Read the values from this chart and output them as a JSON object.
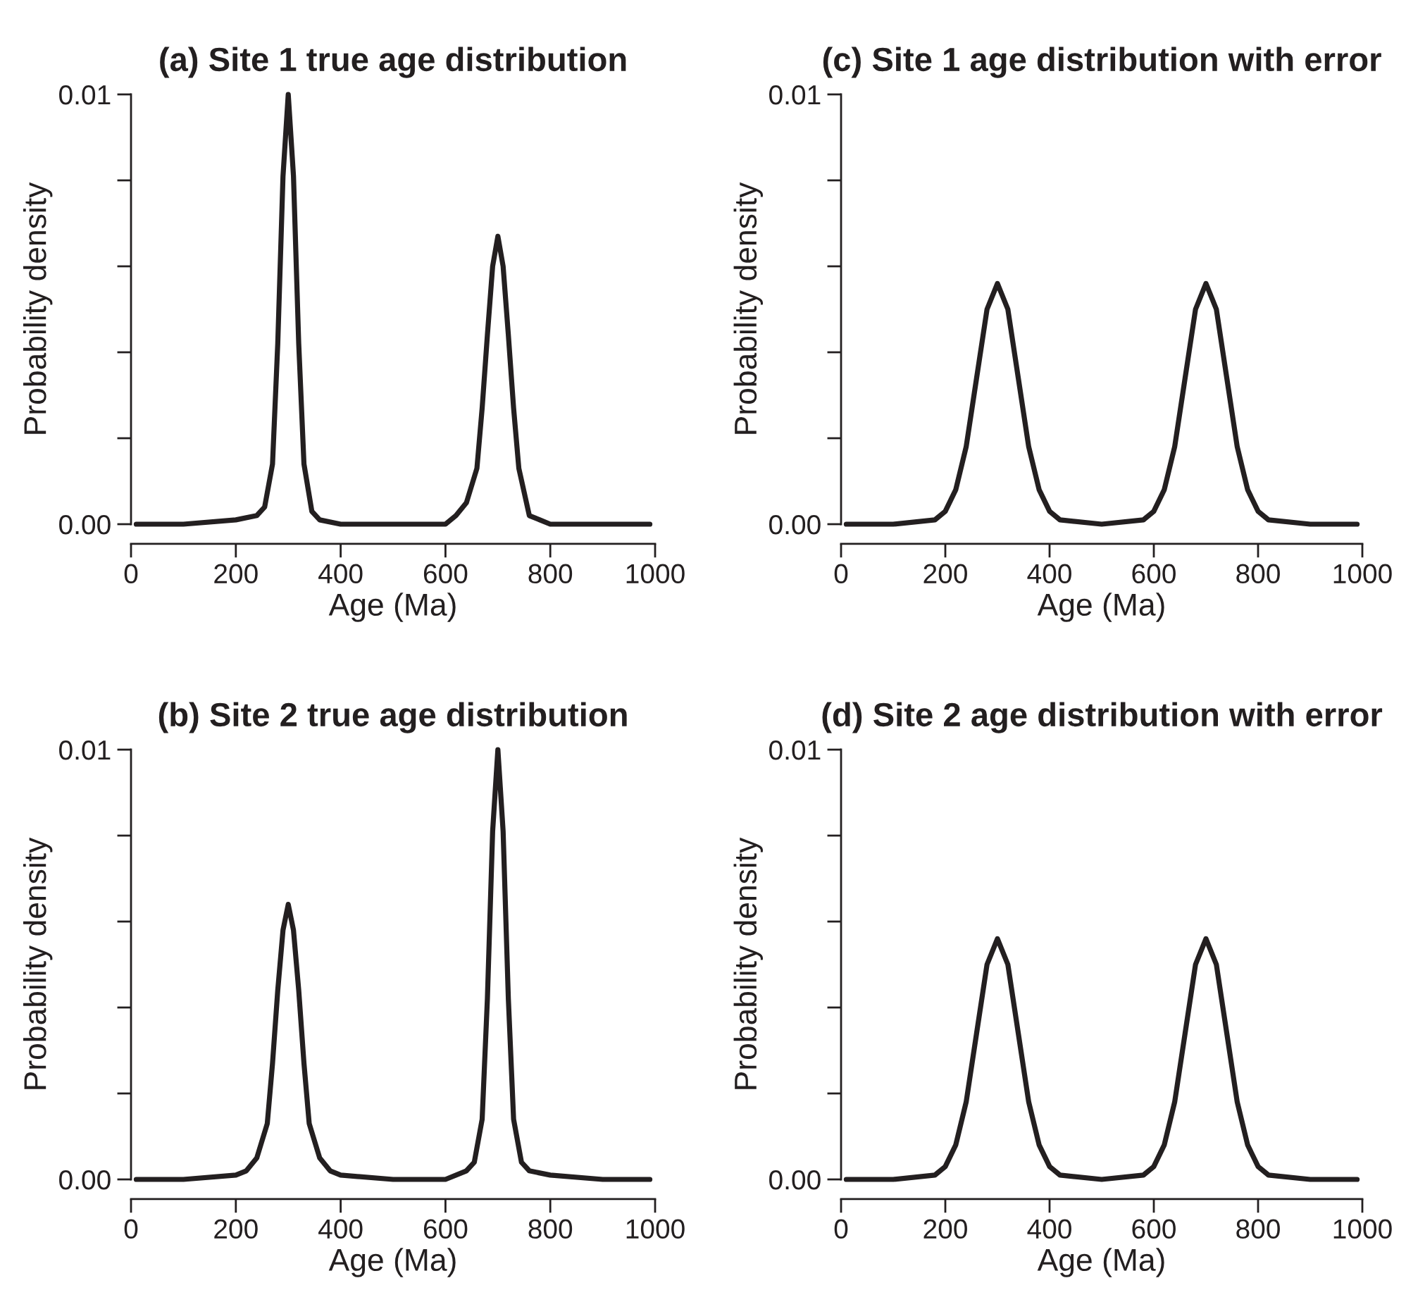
{
  "chart_data": [
    {
      "type": "line",
      "title": "(a) Site 1 true age distribution",
      "xlabel": "Age (Ma)",
      "ylabel": "Probability density",
      "xlim": [
        0,
        1000
      ],
      "ylim": [
        0,
        0.01
      ],
      "xticks": [
        0,
        200,
        400,
        600,
        800,
        1000
      ],
      "yticks": [
        {
          "value": 0,
          "label": "0.00"
        },
        {
          "value": 0.002,
          "label": null
        },
        {
          "value": 0.004,
          "label": null
        },
        {
          "value": 0.006,
          "label": null
        },
        {
          "value": 0.008,
          "label": null
        },
        {
          "value": 0.01,
          "label": "0.01"
        }
      ],
      "grid": false,
      "legend": false,
      "series": [
        {
          "color": "#231f20",
          "x": [
            10,
            100,
            200,
            240,
            255,
            270,
            280,
            290,
            300,
            310,
            320,
            330,
            345,
            360,
            400,
            500,
            600,
            620,
            640,
            660,
            670,
            680,
            690,
            700,
            710,
            720,
            730,
            740,
            760,
            780,
            800,
            900,
            990
          ],
          "values": [
            0,
            0,
            0.0001,
            0.0002,
            0.0004,
            0.0014,
            0.0042,
            0.0081,
            0.01,
            0.0081,
            0.0042,
            0.0014,
            0.0003,
            0.0001,
            0,
            0,
            0,
            0.0002,
            0.0005,
            0.0013,
            0.0027,
            0.0044,
            0.006,
            0.0067,
            0.006,
            0.0044,
            0.0027,
            0.0013,
            0.0002,
            0.0001,
            0,
            0,
            0
          ]
        }
      ]
    },
    {
      "type": "line",
      "title": "(c) Site 1 age distribution with error",
      "xlabel": "Age (Ma)",
      "ylabel": "Probability density",
      "xlim": [
        0,
        1000
      ],
      "ylim": [
        0,
        0.01
      ],
      "xticks": [
        0,
        200,
        400,
        600,
        800,
        1000
      ],
      "yticks": [
        {
          "value": 0,
          "label": "0.00"
        },
        {
          "value": 0.002,
          "label": null
        },
        {
          "value": 0.004,
          "label": null
        },
        {
          "value": 0.006,
          "label": null
        },
        {
          "value": 0.008,
          "label": null
        },
        {
          "value": 0.01,
          "label": "0.01"
        }
      ],
      "grid": false,
      "legend": false,
      "series": [
        {
          "color": "#231f20",
          "x": [
            10,
            100,
            180,
            200,
            220,
            240,
            260,
            280,
            300,
            320,
            340,
            360,
            380,
            400,
            420,
            500,
            580,
            600,
            620,
            640,
            660,
            680,
            700,
            720,
            740,
            760,
            780,
            800,
            820,
            900,
            990
          ],
          "values": [
            0,
            0,
            0.0001,
            0.0003,
            0.0008,
            0.0018,
            0.0034,
            0.005,
            0.0056,
            0.005,
            0.0034,
            0.0018,
            0.0008,
            0.0003,
            0.0001,
            0,
            0.0001,
            0.0003,
            0.0008,
            0.0018,
            0.0034,
            0.005,
            0.0056,
            0.005,
            0.0034,
            0.0018,
            0.0008,
            0.0003,
            0.0001,
            0,
            0
          ]
        }
      ]
    },
    {
      "type": "line",
      "title": "(b) Site 2 true age distribution",
      "xlabel": "Age (Ma)",
      "ylabel": "Probability density",
      "xlim": [
        0,
        1000
      ],
      "ylim": [
        0,
        0.01
      ],
      "xticks": [
        0,
        200,
        400,
        600,
        800,
        1000
      ],
      "yticks": [
        {
          "value": 0,
          "label": "0.00"
        },
        {
          "value": 0.002,
          "label": null
        },
        {
          "value": 0.004,
          "label": null
        },
        {
          "value": 0.006,
          "label": null
        },
        {
          "value": 0.008,
          "label": null
        },
        {
          "value": 0.01,
          "label": "0.01"
        }
      ],
      "grid": false,
      "legend": false,
      "series": [
        {
          "color": "#231f20",
          "x": [
            10,
            100,
            200,
            220,
            240,
            260,
            270,
            280,
            290,
            300,
            310,
            320,
            330,
            340,
            360,
            380,
            400,
            500,
            600,
            640,
            655,
            670,
            680,
            690,
            700,
            710,
            720,
            730,
            745,
            760,
            800,
            900,
            990
          ],
          "values": [
            0,
            0,
            0.0001,
            0.0002,
            0.0005,
            0.0013,
            0.0027,
            0.0044,
            0.0058,
            0.0064,
            0.0058,
            0.0044,
            0.0027,
            0.0013,
            0.0005,
            0.0002,
            0.0001,
            0,
            0,
            0.0002,
            0.0004,
            0.0014,
            0.0042,
            0.0081,
            0.01,
            0.0081,
            0.0042,
            0.0014,
            0.0004,
            0.0002,
            0.0001,
            0,
            0
          ]
        }
      ]
    },
    {
      "type": "line",
      "title": "(d) Site 2 age distribution with error",
      "xlabel": "Age (Ma)",
      "ylabel": "Probability density",
      "xlim": [
        0,
        1000
      ],
      "ylim": [
        0,
        0.01
      ],
      "xticks": [
        0,
        200,
        400,
        600,
        800,
        1000
      ],
      "yticks": [
        {
          "value": 0,
          "label": "0.00"
        },
        {
          "value": 0.002,
          "label": null
        },
        {
          "value": 0.004,
          "label": null
        },
        {
          "value": 0.006,
          "label": null
        },
        {
          "value": 0.008,
          "label": null
        },
        {
          "value": 0.01,
          "label": "0.01"
        }
      ],
      "grid": false,
      "legend": false,
      "series": [
        {
          "color": "#231f20",
          "x": [
            10,
            100,
            180,
            200,
            220,
            240,
            260,
            280,
            300,
            320,
            340,
            360,
            380,
            400,
            420,
            500,
            580,
            600,
            620,
            640,
            660,
            680,
            700,
            720,
            740,
            760,
            780,
            800,
            820,
            900,
            990
          ],
          "values": [
            0,
            0,
            0.0001,
            0.0003,
            0.0008,
            0.0018,
            0.0034,
            0.005,
            0.0056,
            0.005,
            0.0034,
            0.0018,
            0.0008,
            0.0003,
            0.0001,
            0,
            0.0001,
            0.0003,
            0.0008,
            0.0018,
            0.0034,
            0.005,
            0.0056,
            0.005,
            0.0034,
            0.0018,
            0.0008,
            0.0003,
            0.0001,
            0,
            0
          ]
        }
      ]
    }
  ]
}
